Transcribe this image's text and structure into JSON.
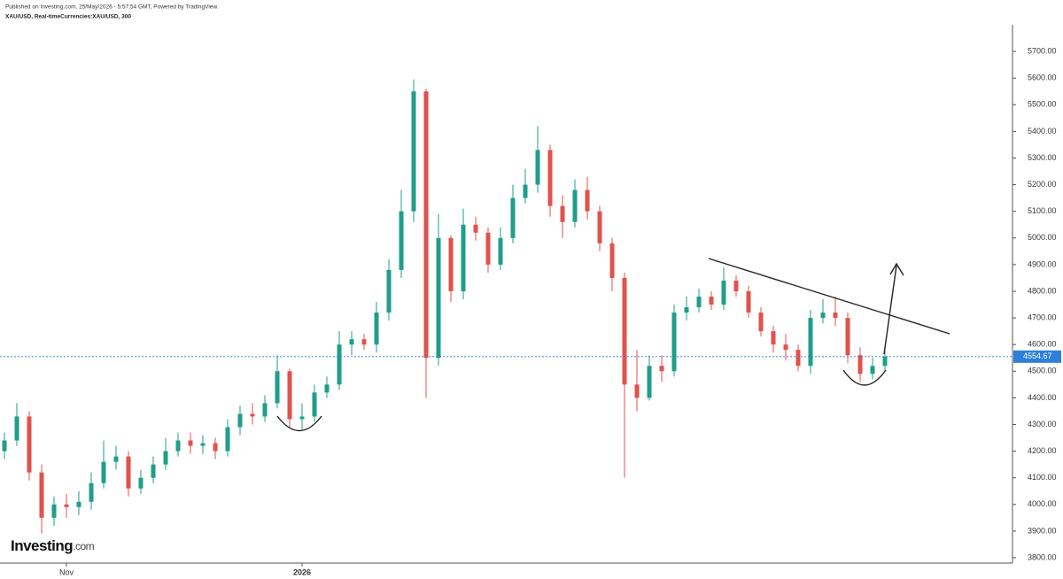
{
  "chart_data": {
    "type": "ohlc",
    "title": "Published on Investing.com, 25/May/2026 - 5:57:54 GMT, Powered by TradingView.",
    "subtitle": "XAU/USD, Real-timeCurrencies:XAU/USD, 300",
    "logo": {
      "name": "Investing",
      "suffix": ".com"
    },
    "categories": [
      null,
      null,
      null,
      null,
      null,
      "Nov",
      null,
      null,
      null,
      null,
      null,
      null,
      null,
      null,
      null,
      null,
      null,
      null,
      null,
      null,
      null,
      null,
      null,
      null,
      "2026",
      null,
      null,
      null,
      null,
      null,
      null,
      null,
      null,
      null,
      null,
      null,
      null,
      null,
      null,
      null,
      null,
      null,
      null,
      null,
      null,
      null,
      null,
      null,
      null,
      null,
      null,
      null,
      null,
      null,
      null,
      null,
      null,
      null,
      null,
      null,
      null,
      null,
      null,
      null,
      null,
      null,
      null,
      null,
      null,
      null,
      null,
      null
    ],
    "open": [
      4200,
      4240,
      4330,
      4120,
      3950,
      4000,
      3990,
      4010,
      4080,
      4160,
      4180,
      4060,
      4100,
      4150,
      4200,
      4240,
      4220,
      4230,
      4200,
      4290,
      4340,
      4330,
      4380,
      4500,
      4320,
      4330,
      4420,
      4450,
      4600,
      4620,
      4600,
      4720,
      4880,
      5100,
      5550,
      4550,
      5000,
      4800,
      5050,
      5020,
      4900,
      5000,
      5150,
      5200,
      5330,
      5120,
      5060,
      5180,
      5100,
      4980,
      4850,
      4450,
      4400,
      4520,
      4500,
      4720,
      4740,
      4780,
      4750,
      4840,
      4800,
      4720,
      4650,
      4600,
      4580,
      4520,
      4700,
      4720,
      4700,
      4560,
      4490,
      4520
    ],
    "high": [
      4270,
      4380,
      4350,
      4150,
      4030,
      4040,
      4050,
      4120,
      4240,
      4220,
      4200,
      4130,
      4180,
      4250,
      4270,
      4270,
      4260,
      4250,
      4320,
      4370,
      4380,
      4410,
      4560,
      4510,
      4380,
      4450,
      4480,
      4650,
      4650,
      4640,
      4760,
      4920,
      5180,
      5595,
      5560,
      5090,
      5010,
      5110,
      5080,
      5040,
      5040,
      5200,
      5260,
      5420,
      5350,
      5160,
      5220,
      5230,
      5120,
      5000,
      4870,
      4580,
      4560,
      4560,
      4750,
      4780,
      4810,
      4800,
      4890,
      4860,
      4820,
      4740,
      4670,
      4640,
      4600,
      4730,
      4770,
      4780,
      4720,
      4590,
      4550,
      4580
    ],
    "low": [
      4170,
      4220,
      4090,
      3890,
      3920,
      3950,
      3960,
      3980,
      4060,
      4130,
      4030,
      4040,
      4080,
      4130,
      4180,
      4190,
      4190,
      4170,
      4180,
      4260,
      4300,
      4310,
      4360,
      4290,
      4280,
      4310,
      4400,
      4430,
      4560,
      4580,
      4570,
      4690,
      4850,
      5060,
      4400,
      4520,
      4760,
      4770,
      4990,
      4870,
      4880,
      4980,
      5130,
      5170,
      5080,
      5000,
      5040,
      5070,
      4950,
      4800,
      4100,
      4350,
      4390,
      4460,
      4480,
      4690,
      4720,
      4730,
      4730,
      4780,
      4700,
      4630,
      4570,
      4540,
      4500,
      4490,
      4680,
      4670,
      4530,
      4460,
      4470,
      4500
    ],
    "close": [
      4240,
      4330,
      4120,
      3950,
      4000,
      3990,
      4010,
      4080,
      4160,
      4180,
      4060,
      4100,
      4150,
      4200,
      4240,
      4220,
      4230,
      4200,
      4290,
      4340,
      4330,
      4380,
      4500,
      4320,
      4330,
      4420,
      4450,
      4600,
      4620,
      4600,
      4720,
      4880,
      5100,
      5550,
      4550,
      5000,
      4800,
      5050,
      5020,
      4900,
      5000,
      5150,
      5200,
      5330,
      5120,
      5060,
      5180,
      5100,
      4980,
      4850,
      4450,
      4400,
      4520,
      4500,
      4720,
      4740,
      4780,
      4750,
      4840,
      4800,
      4720,
      4650,
      4600,
      4580,
      4520,
      4700,
      4720,
      4700,
      4560,
      4490,
      4520,
      4554.67
    ],
    "up_color": "#1f9e89",
    "down_color": "#e0524c",
    "last_price_color": "#2f7fd8",
    "ylim": [
      3780,
      5800
    ],
    "yticks": [
      {
        "value": 3800,
        "label": "3800.00"
      },
      {
        "value": 3900,
        "label": "3900.00"
      },
      {
        "value": 4000,
        "label": "4000.00"
      },
      {
        "value": 4100,
        "label": "4100.00"
      },
      {
        "value": 4200,
        "label": "4200.00"
      },
      {
        "value": 4300,
        "label": "4300.00"
      },
      {
        "value": 4400,
        "label": "4400.00"
      },
      {
        "value": 4500,
        "label": "4500.00"
      },
      {
        "value": 4600,
        "label": "4600.00"
      },
      {
        "value": 4700,
        "label": "4700.00"
      },
      {
        "value": 4800,
        "label": "4800.00"
      },
      {
        "value": 4900,
        "label": "4900.00"
      },
      {
        "value": 5000,
        "label": "5000.00"
      },
      {
        "value": 5100,
        "label": "5100.00"
      },
      {
        "value": 5200,
        "label": "5200.00"
      },
      {
        "value": 5300,
        "label": "5300.00"
      },
      {
        "value": 5400,
        "label": "5400.00"
      },
      {
        "value": 5500,
        "label": "5500.00"
      },
      {
        "value": 5600,
        "label": "5600.00"
      },
      {
        "value": 5700,
        "label": "5700.00"
      }
    ],
    "grid": false
  }
}
